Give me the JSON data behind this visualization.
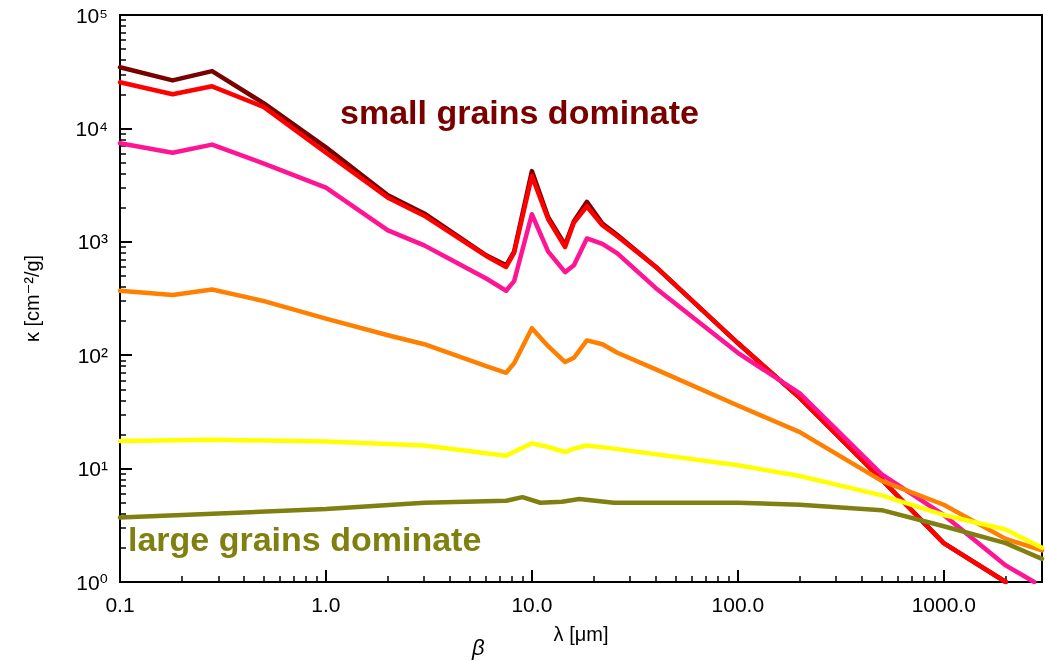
{
  "chart_data": {
    "type": "line",
    "xlabel": "λ [μm]",
    "ylabel": "κ [cm⁻²/g]",
    "log": "xy",
    "grid": false,
    "marker": "none",
    "line_style": "solid",
    "xlim": [
      0.1,
      3000
    ],
    "xticks": [
      {
        "value": 0.1,
        "label": "0.1"
      },
      {
        "value": 1,
        "label": "1.0"
      },
      {
        "value": 10,
        "label": "10.0"
      },
      {
        "value": 100,
        "label": "100.0"
      },
      {
        "value": 1000,
        "label": "1000.0"
      }
    ],
    "ylim": [
      1,
      100000
    ],
    "yticks": [
      {
        "value": 1,
        "label": "10⁰"
      },
      {
        "value": 10,
        "label": "10¹"
      },
      {
        "value": 100,
        "label": "10²"
      },
      {
        "value": 1000,
        "label": "10³"
      },
      {
        "value": 10000,
        "label": "10⁴"
      },
      {
        "value": 100000,
        "label": "10⁵"
      }
    ],
    "annotations": [
      "small grains dominate",
      "large grains dominate",
      "β"
    ],
    "series": [
      {
        "color": "#7a0000",
        "x": [
          0.1,
          0.18,
          0.28,
          0.5,
          1,
          2,
          3,
          6,
          7.5,
          8.2,
          10,
          12,
          14.5,
          16,
          18.5,
          22,
          26,
          40,
          100,
          200,
          500,
          1000,
          2000
        ],
        "values": [
          34600,
          26500,
          32000,
          16600,
          6800,
          2570,
          1780,
          760,
          620,
          820,
          4200,
          1650,
          940,
          1520,
          2250,
          1450,
          1150,
          600,
          128,
          42,
          8,
          2.2,
          1
        ]
      },
      {
        "color": "#ff0000",
        "x": [
          0.1,
          0.18,
          0.28,
          0.5,
          1,
          2,
          3,
          6,
          7.5,
          8.2,
          10,
          12,
          14.5,
          16,
          18.5,
          22,
          26,
          40,
          100,
          200,
          500,
          1000,
          2000
        ],
        "values": [
          25500,
          20000,
          23500,
          15400,
          6100,
          2450,
          1700,
          750,
          600,
          800,
          3800,
          1580,
          900,
          1480,
          2050,
          1400,
          1120,
          600,
          128,
          42,
          8,
          2.2,
          1
        ]
      },
      {
        "color": "#ff1493",
        "x": [
          0.1,
          0.18,
          0.28,
          0.5,
          1,
          2,
          3,
          6,
          7.5,
          8.2,
          10,
          12,
          14.5,
          16,
          18.5,
          22,
          26,
          40,
          100,
          200,
          500,
          1000,
          2000,
          2750
        ],
        "values": [
          7400,
          6100,
          7200,
          4900,
          3000,
          1260,
          930,
          475,
          370,
          450,
          1750,
          820,
          540,
          620,
          1070,
          960,
          790,
          390,
          105,
          46,
          8.9,
          3.9,
          1.4,
          1
        ]
      },
      {
        "color": "#ff8000",
        "x": [
          0.1,
          0.18,
          0.28,
          0.5,
          1,
          2,
          3,
          6,
          7.5,
          8.2,
          10,
          12,
          14.5,
          16,
          18.5,
          22,
          26,
          40,
          100,
          200,
          500,
          1000,
          2000,
          3000
        ],
        "values": [
          370,
          340,
          380,
          300,
          210,
          150,
          125,
          80,
          70,
          85,
          173,
          120,
          87,
          95,
          135,
          125,
          105,
          75,
          36,
          21,
          7.8,
          4.8,
          2.4,
          1.9
        ]
      },
      {
        "color": "#ffff00",
        "x": [
          0.1,
          0.28,
          1,
          3,
          7.5,
          8.5,
          10,
          12,
          14.5,
          16,
          18.5,
          25,
          100,
          200,
          500,
          1000,
          2000,
          3000
        ],
        "values": [
          17.5,
          18,
          17.3,
          16,
          13,
          14.5,
          16.7,
          15.5,
          14,
          15,
          16,
          15,
          10.7,
          8.6,
          5.8,
          3.9,
          2.9,
          2
        ]
      },
      {
        "color": "#808010",
        "x": [
          0.1,
          1,
          3,
          7.5,
          9,
          11,
          14,
          17,
          25,
          100,
          200,
          500,
          1000,
          2000,
          3000
        ],
        "values": [
          3.7,
          4.4,
          5,
          5.2,
          5.6,
          5,
          5.1,
          5.4,
          5,
          5,
          4.8,
          4.3,
          3.1,
          2.2,
          1.6
        ]
      }
    ]
  }
}
